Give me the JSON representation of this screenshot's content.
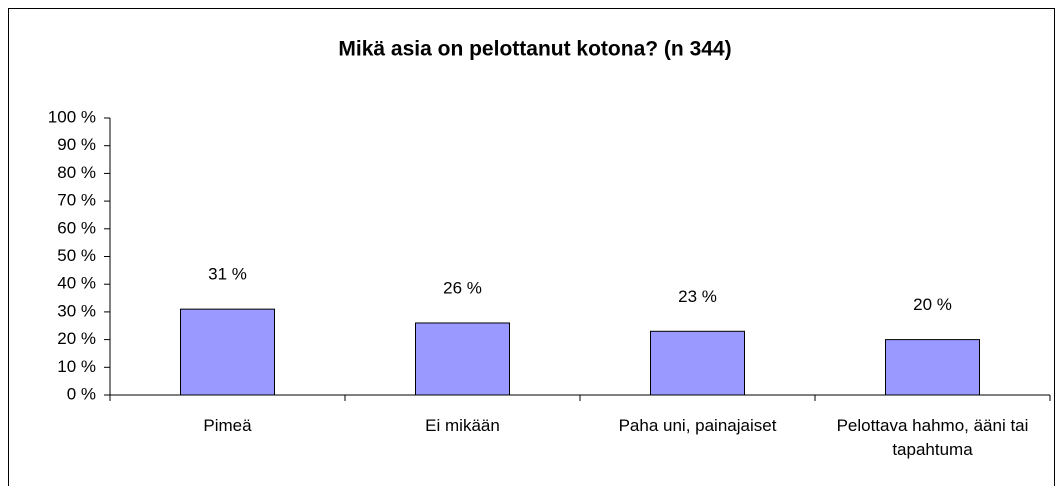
{
  "chart_data": {
    "type": "bar",
    "title": "Mikä asia on pelottanut kotona? (n 344)",
    "categories": [
      "Pimeä",
      "Ei mikään",
      "Paha uni, painajaiset",
      "Pelottava hahmo, ääni tai tapahtuma"
    ],
    "values": [
      31,
      26,
      23,
      20
    ],
    "value_labels": [
      "31 %",
      "26 %",
      "23 %",
      "20 %"
    ],
    "color": "#9999ff",
    "ylim": [
      0,
      100
    ],
    "yticks": [
      {
        "value": 0,
        "label": "0 %"
      },
      {
        "value": 10,
        "label": "10 %"
      },
      {
        "value": 20,
        "label": "20 %"
      },
      {
        "value": 30,
        "label": "30 %"
      },
      {
        "value": 40,
        "label": "40 %"
      },
      {
        "value": 50,
        "label": "50 %"
      },
      {
        "value": 60,
        "label": "60 %"
      },
      {
        "value": 70,
        "label": "70 %"
      },
      {
        "value": 80,
        "label": "80 %"
      },
      {
        "value": 90,
        "label": "90 %"
      },
      {
        "value": 100,
        "label": "100 %"
      }
    ],
    "grid": false
  }
}
